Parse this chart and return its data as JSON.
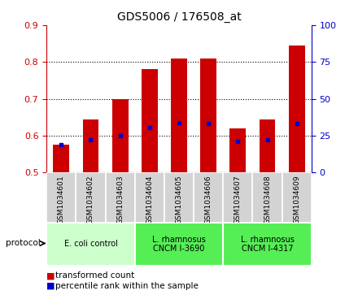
{
  "title": "GDS5006 / 176508_at",
  "samples": [
    "GSM1034601",
    "GSM1034602",
    "GSM1034603",
    "GSM1034604",
    "GSM1034605",
    "GSM1034606",
    "GSM1034607",
    "GSM1034608",
    "GSM1034609"
  ],
  "transformed_count": [
    0.575,
    0.645,
    0.7,
    0.78,
    0.81,
    0.81,
    0.62,
    0.645,
    0.845
  ],
  "percentile_rank": [
    0.575,
    0.59,
    0.6,
    0.623,
    0.635,
    0.633,
    0.585,
    0.59,
    0.632
  ],
  "ylim_left": [
    0.5,
    0.9
  ],
  "ylim_right": [
    0,
    100
  ],
  "yticks_left": [
    0.5,
    0.6,
    0.7,
    0.8,
    0.9
  ],
  "yticks_right": [
    0,
    25,
    50,
    75,
    100
  ],
  "bar_color": "#cc0000",
  "dot_color": "#0000cc",
  "bar_bottom": 0.5,
  "groups": [
    {
      "label": "E. coli control",
      "indices": [
        0,
        1,
        2
      ],
      "color": "#ccffcc"
    },
    {
      "label": "L. rhamnosus\nCNCM I-3690",
      "indices": [
        3,
        4,
        5
      ],
      "color": "#55ee55"
    },
    {
      "label": "L. rhamnosus\nCNCM I-4317",
      "indices": [
        6,
        7,
        8
      ],
      "color": "#55ee55"
    }
  ],
  "legend_bar_label": "transformed count",
  "legend_dot_label": "percentile rank within the sample",
  "protocol_label": "protocol",
  "background_color": "#ffffff",
  "tick_label_color_left": "#cc0000",
  "tick_label_color_right": "#0000cc",
  "sample_box_color": "#d3d3d3",
  "grid_lines": [
    0.6,
    0.7,
    0.8
  ]
}
